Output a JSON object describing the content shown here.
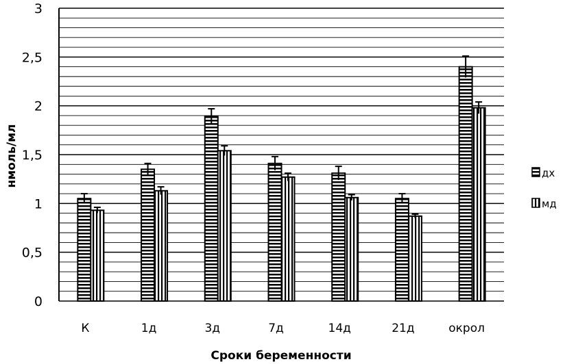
{
  "chart_data": {
    "type": "bar",
    "title": "",
    "xlabel": "Сроки беременности",
    "ylabel": "нмоль/мл",
    "ylim": [
      0,
      3
    ],
    "yticks": [
      "0",
      "0,5",
      "1",
      "1,5",
      "2",
      "2,5",
      "3"
    ],
    "ytick_values": [
      0,
      0.5,
      1,
      1.5,
      2,
      2.5,
      3
    ],
    "categories": [
      "К",
      "1д",
      "3д",
      "7д",
      "14д",
      "21д",
      "окрол"
    ],
    "series": [
      {
        "name": "дх",
        "values": [
          1.05,
          1.35,
          1.89,
          1.41,
          1.31,
          1.05,
          2.4
        ],
        "errors": [
          0.05,
          0.06,
          0.08,
          0.07,
          0.07,
          0.05,
          0.11
        ]
      },
      {
        "name": "мд",
        "values": [
          0.93,
          1.13,
          1.54,
          1.27,
          1.06,
          0.87,
          1.98
        ],
        "errors": [
          0.03,
          0.04,
          0.05,
          0.04,
          0.03,
          0.02,
          0.06
        ]
      }
    ],
    "grid": true,
    "legend_position": "right",
    "colors": {
      "ink": "#000000",
      "background": "#ffffff"
    }
  }
}
